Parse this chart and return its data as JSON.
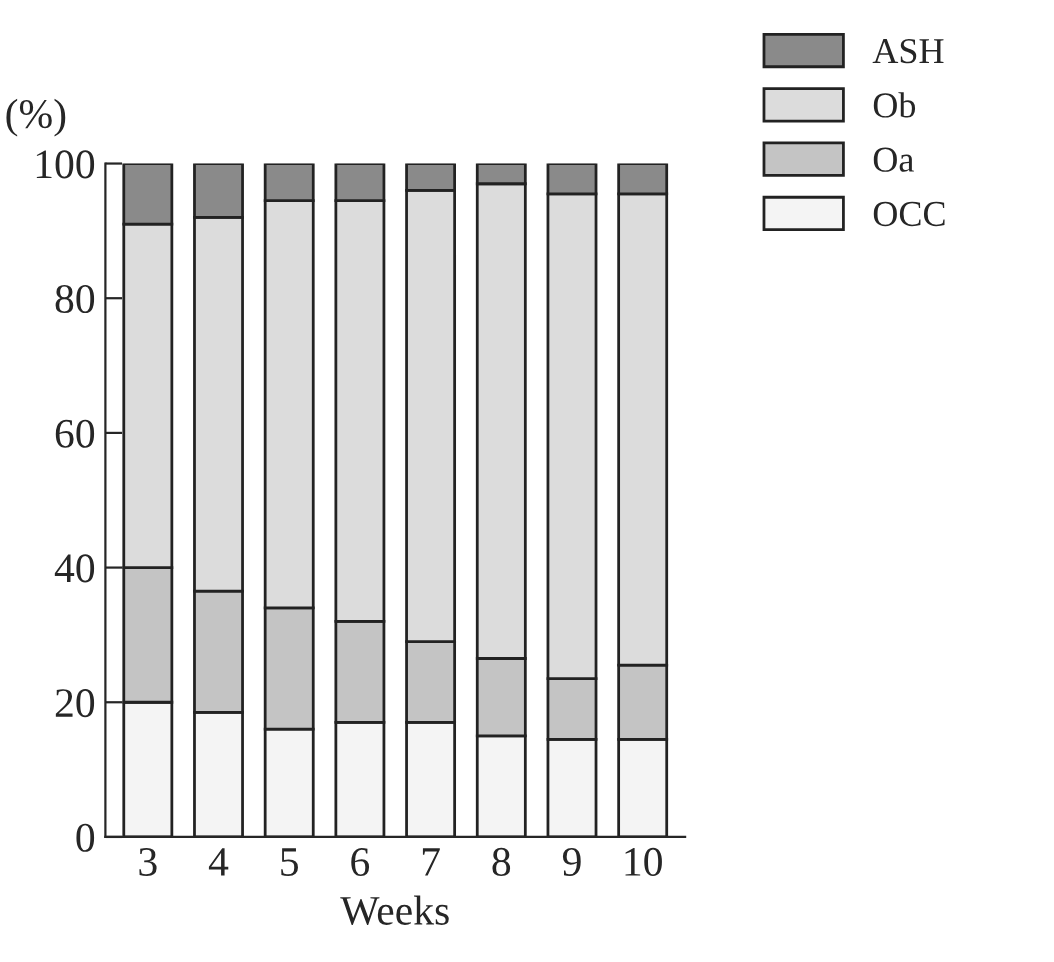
{
  "chart_data": {
    "type": "bar",
    "stacked": true,
    "xlabel": "Weeks",
    "ylabel": "(%)",
    "categories": [
      "3",
      "4",
      "5",
      "6",
      "7",
      "8",
      "9",
      "10"
    ],
    "series": [
      {
        "name": "OCC",
        "color": "#f4f4f4",
        "values": [
          20,
          18.5,
          16,
          17,
          17,
          15,
          14.5,
          14.5
        ]
      },
      {
        "name": "Oa",
        "color": "#c4c4c4",
        "values": [
          20,
          18,
          18,
          15,
          12,
          11.5,
          9,
          11
        ]
      },
      {
        "name": "Ob",
        "color": "#dcdcdc",
        "values": [
          51,
          55.5,
          60.5,
          62.5,
          67,
          70.5,
          72,
          70
        ]
      },
      {
        "name": "ASH",
        "color": "#8a8a8a",
        "values": [
          9,
          8,
          5.5,
          5.5,
          4,
          3,
          4.5,
          4.5
        ]
      }
    ],
    "ylim": [
      0,
      100
    ],
    "yticks": [
      0,
      20,
      40,
      60,
      80,
      100
    ],
    "legend": "top right",
    "grid": false
  }
}
